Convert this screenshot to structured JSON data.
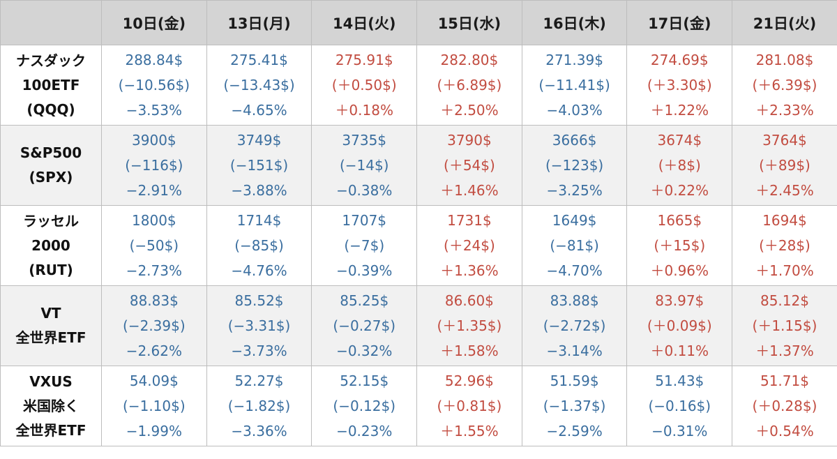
{
  "colors": {
    "down": "#3a6e9f",
    "up": "#c24c40",
    "header_bg": "#d4d4d4",
    "row_shade": "#f1f1f1"
  },
  "header": {
    "corner": "",
    "days": [
      "10日(金)",
      "13日(月)",
      "14日(火)",
      "15日(水)",
      "16日(木)",
      "17日(金)",
      "21日(火)"
    ]
  },
  "rows": [
    {
      "label": [
        "ナスダック",
        "100ETF",
        "(QQQ)"
      ],
      "cells": [
        {
          "dir": "down",
          "price": "288.84$",
          "change": "(−10.56$)",
          "pct": "−3.53%"
        },
        {
          "dir": "down",
          "price": "275.41$",
          "change": "(−13.43$)",
          "pct": "−4.65%"
        },
        {
          "dir": "up",
          "price": "275.91$",
          "change": "(＋0.50$)",
          "pct": "＋0.18%"
        },
        {
          "dir": "up",
          "price": "282.80$",
          "change": "(＋6.89$)",
          "pct": "＋2.50%"
        },
        {
          "dir": "down",
          "price": "271.39$",
          "change": "(−11.41$)",
          "pct": "−4.03%"
        },
        {
          "dir": "up",
          "price": "274.69$",
          "change": "(＋3.30$)",
          "pct": "＋1.22%"
        },
        {
          "dir": "up",
          "price": "281.08$",
          "change": "(＋6.39$)",
          "pct": "＋2.33%"
        }
      ]
    },
    {
      "label": [
        "S&P500",
        "(SPX)"
      ],
      "cells": [
        {
          "dir": "down",
          "price": "3900$",
          "change": "(−116$)",
          "pct": "−2.91%"
        },
        {
          "dir": "down",
          "price": "3749$",
          "change": "(−151$)",
          "pct": "−3.88%"
        },
        {
          "dir": "down",
          "price": "3735$",
          "change": "(−14$)",
          "pct": "−0.38%"
        },
        {
          "dir": "up",
          "price": "3790$",
          "change": "(＋54$)",
          "pct": "＋1.46%"
        },
        {
          "dir": "down",
          "price": "3666$",
          "change": "(−123$)",
          "pct": "−3.25%"
        },
        {
          "dir": "up",
          "price": "3674$",
          "change": "(＋8$)",
          "pct": "＋0.22%"
        },
        {
          "dir": "up",
          "price": "3764$",
          "change": "(＋89$)",
          "pct": "＋2.45%"
        }
      ]
    },
    {
      "label": [
        "ラッセル",
        "2000",
        "(RUT)"
      ],
      "cells": [
        {
          "dir": "down",
          "price": "1800$",
          "change": "(−50$)",
          "pct": "−2.73%"
        },
        {
          "dir": "down",
          "price": "1714$",
          "change": "(−85$)",
          "pct": "−4.76%"
        },
        {
          "dir": "down",
          "price": "1707$",
          "change": "(−7$)",
          "pct": "−0.39%"
        },
        {
          "dir": "up",
          "price": "1731$",
          "change": "(＋24$)",
          "pct": "＋1.36%"
        },
        {
          "dir": "down",
          "price": "1649$",
          "change": "(−81$)",
          "pct": "−4.70%"
        },
        {
          "dir": "up",
          "price": "1665$",
          "change": "(＋15$)",
          "pct": "＋0.96%"
        },
        {
          "dir": "up",
          "price": "1694$",
          "change": "(＋28$)",
          "pct": "＋1.70%"
        }
      ]
    },
    {
      "label": [
        "VT",
        "全世界ETF"
      ],
      "cells": [
        {
          "dir": "down",
          "price": "88.83$",
          "change": "(−2.39$)",
          "pct": "−2.62%"
        },
        {
          "dir": "down",
          "price": "85.52$",
          "change": "(−3.31$)",
          "pct": "−3.73%"
        },
        {
          "dir": "down",
          "price": "85.25$",
          "change": "(−0.27$)",
          "pct": "−0.32%"
        },
        {
          "dir": "up",
          "price": "86.60$",
          "change": "(＋1.35$)",
          "pct": "＋1.58%"
        },
        {
          "dir": "down",
          "price": "83.88$",
          "change": "(−2.72$)",
          "pct": "−3.14%"
        },
        {
          "dir": "up",
          "price": "83.97$",
          "change": "(＋0.09$)",
          "pct": "＋0.11%"
        },
        {
          "dir": "up",
          "price": "85.12$",
          "change": "(＋1.15$)",
          "pct": "＋1.37%"
        }
      ]
    },
    {
      "label": [
        "VXUS",
        "米国除く",
        "全世界ETF"
      ],
      "cells": [
        {
          "dir": "down",
          "price": "54.09$",
          "change": "(−1.10$)",
          "pct": "−1.99%"
        },
        {
          "dir": "down",
          "price": "52.27$",
          "change": "(−1.82$)",
          "pct": "−3.36%"
        },
        {
          "dir": "down",
          "price": "52.15$",
          "change": "(−0.12$)",
          "pct": "−0.23%"
        },
        {
          "dir": "up",
          "price": "52.96$",
          "change": "(＋0.81$)",
          "pct": "＋1.55%"
        },
        {
          "dir": "down",
          "price": "51.59$",
          "change": "(−1.37$)",
          "pct": "−2.59%"
        },
        {
          "dir": "down",
          "price": "51.43$",
          "change": "(−0.16$)",
          "pct": "−0.31%"
        },
        {
          "dir": "up",
          "price": "51.71$",
          "change": "(＋0.28$)",
          "pct": "＋0.54%"
        }
      ]
    }
  ]
}
